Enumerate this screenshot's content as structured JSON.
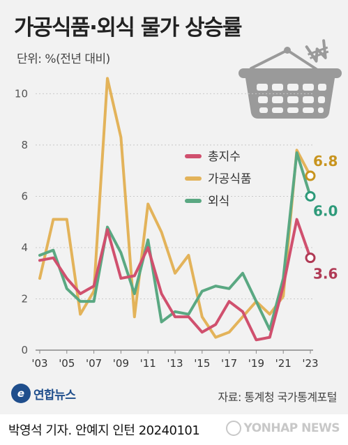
{
  "title": "가공식품·외식 물가 상승률",
  "unit": "단위: %(전년 대비)",
  "source": "자료: 통계청 국가통계포털",
  "logo_text": "연합뉴스",
  "logo_mark": "e",
  "credit": "박영석 기자. 안예지 인턴  20240101",
  "watermark": "YONHAP NEWS",
  "colors": {
    "total": "#d0506e",
    "processed_food": "#e3b35a",
    "dining_out": "#5aa882",
    "end_total": "#b03a55",
    "end_processed_food": "#c8941e",
    "end_dining_out": "#2e9a7a",
    "basket": "#9a9a9a"
  },
  "icons": [
    "shopping-basket-icon",
    "won-sign-icon"
  ],
  "chart_data": {
    "type": "line",
    "title": "가공식품·외식 물가 상승률",
    "ylabel": "단위: %(전년 대비)",
    "ylim": [
      0,
      10.8
    ],
    "yticks": [
      "0",
      "2",
      "4",
      "6",
      "8",
      "10"
    ],
    "x": [
      2003,
      2004,
      2005,
      2006,
      2007,
      2008,
      2009,
      2010,
      2011,
      2012,
      2013,
      2014,
      2015,
      2016,
      2017,
      2018,
      2019,
      2020,
      2021,
      2022,
      2023
    ],
    "xticks": [
      "'03",
      "'05",
      "'07",
      "'09",
      "'11",
      "'13",
      "'15",
      "'17",
      "'19",
      "'21",
      "'23"
    ],
    "legend": [
      "총지수",
      "가공식품",
      "외식"
    ],
    "legend_position": "inside-right",
    "series": [
      {
        "name": "총지수",
        "values": [
          3.5,
          3.6,
          2.8,
          2.2,
          2.5,
          4.7,
          2.8,
          2.9,
          4.0,
          2.2,
          1.3,
          1.3,
          0.7,
          1.0,
          1.9,
          1.5,
          0.4,
          0.5,
          2.5,
          5.1,
          3.6
        ],
        "end_label": "3.6"
      },
      {
        "name": "가공식품",
        "values": [
          2.8,
          5.1,
          5.1,
          1.4,
          2.3,
          10.6,
          8.3,
          1.3,
          5.7,
          4.6,
          3.0,
          3.7,
          1.3,
          0.5,
          0.7,
          1.3,
          1.9,
          1.4,
          2.1,
          7.8,
          6.8
        ],
        "end_label": "6.8"
      },
      {
        "name": "외식",
        "values": [
          3.7,
          3.9,
          2.4,
          1.9,
          1.9,
          4.8,
          3.8,
          2.2,
          4.3,
          1.1,
          1.5,
          1.4,
          2.3,
          2.5,
          2.4,
          3.0,
          1.9,
          0.8,
          2.8,
          7.7,
          6.0
        ],
        "end_label": "6.0"
      }
    ]
  }
}
